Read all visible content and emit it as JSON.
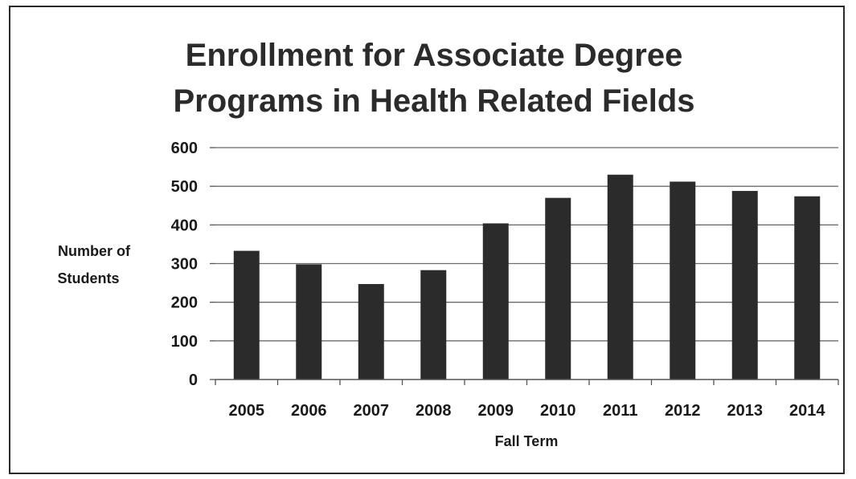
{
  "chart_data": {
    "type": "bar",
    "title_lines": [
      "Enrollment for Associate Degree",
      "Programs in  Health Related Fields"
    ],
    "xlabel": "Fall Term",
    "ylabel_lines": [
      "Number of",
      "Students"
    ],
    "categories": [
      "2005",
      "2006",
      "2007",
      "2008",
      "2009",
      "2010",
      "2011",
      "2012",
      "2013",
      "2014"
    ],
    "values": [
      333,
      298,
      247,
      283,
      404,
      470,
      530,
      512,
      488,
      474
    ],
    "ylim": [
      0,
      600
    ],
    "yticks": [
      0,
      100,
      200,
      300,
      400,
      500,
      600
    ],
    "grid": true,
    "legend": "none",
    "bar_color": "#2b2b2b"
  }
}
